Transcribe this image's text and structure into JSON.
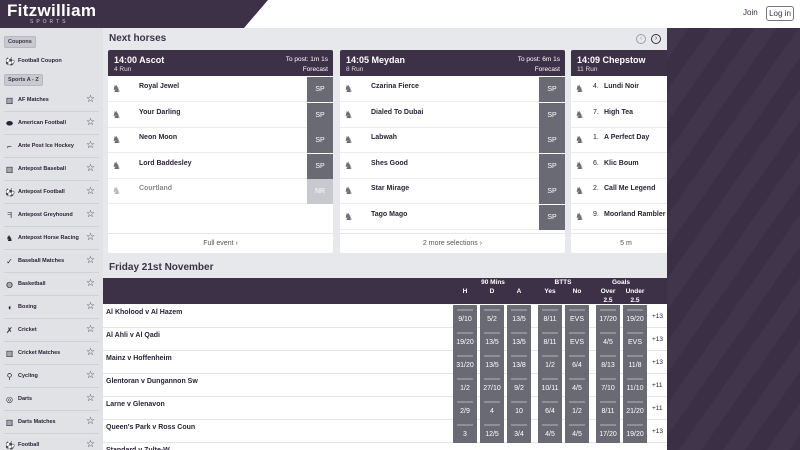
{
  "header": {
    "brand": "Fitzwilliam",
    "brand_sub": "SPORTS",
    "join": "Join",
    "login": "Log in"
  },
  "sidebar": {
    "pill_coupons": "Coupons",
    "coupon_item": {
      "label": "Football Coupon",
      "icon": "soccer-ball-icon"
    },
    "pill_sports": "Sports A - Z",
    "items": [
      {
        "label": "AF Matches",
        "icon": "chart-icon",
        "glyph": "▥"
      },
      {
        "label": "American Football",
        "icon": "american-football-icon",
        "glyph": "⬬"
      },
      {
        "label": "Ante Post Ice Hockey",
        "icon": "hockey-stick-icon",
        "glyph": "⌐"
      },
      {
        "label": "Antepost Baseball",
        "icon": "chart-icon",
        "glyph": "▥"
      },
      {
        "label": "Antepost Football",
        "icon": "soccer-ball-icon",
        "glyph": "⚽"
      },
      {
        "label": "Antepost Greyhound",
        "icon": "greyhound-icon",
        "glyph": "ᖷ"
      },
      {
        "label": "Antepost Horse Racing",
        "icon": "horse-icon",
        "glyph": "♞"
      },
      {
        "label": "Baseball Matches",
        "icon": "baseball-bat-icon",
        "glyph": "✓"
      },
      {
        "label": "Basketball",
        "icon": "basketball-icon",
        "glyph": "◍"
      },
      {
        "label": "Boxing",
        "icon": "boxing-glove-icon",
        "glyph": "◖"
      },
      {
        "label": "Cricket",
        "icon": "cricket-icon",
        "glyph": "✗"
      },
      {
        "label": "Cricket Matches",
        "icon": "chart-icon",
        "glyph": "▥"
      },
      {
        "label": "Cycling",
        "icon": "bicycle-icon",
        "glyph": "⚲"
      },
      {
        "label": "Darts",
        "icon": "darts-icon",
        "glyph": "◎"
      },
      {
        "label": "Darts Matches",
        "icon": "chart-icon",
        "glyph": "▥"
      },
      {
        "label": "Football",
        "icon": "soccer-ball-icon",
        "glyph": "⚽"
      }
    ]
  },
  "next_horses": {
    "title": "Next horses",
    "cards": [
      {
        "time_venue": "14:00 Ascot",
        "runs": "4 Run",
        "to_post": "To post: 1m 1s",
        "forecast": "Forecast",
        "footer": "Full event ›",
        "runners": [
          {
            "num": "",
            "name": "Royal Jewel",
            "price": "SP",
            "nr": false
          },
          {
            "num": "",
            "name": "Your Darling",
            "price": "SP",
            "nr": false
          },
          {
            "num": "",
            "name": "Neon Moon",
            "price": "SP",
            "nr": false
          },
          {
            "num": "",
            "name": "Lord Baddesley",
            "price": "SP",
            "nr": false
          },
          {
            "num": "",
            "name": "Courtland",
            "price": "NR",
            "nr": true
          }
        ]
      },
      {
        "time_venue": "14:05 Meydan",
        "runs": "8 Run",
        "to_post": "To post: 6m 1s",
        "forecast": "Forecast",
        "footer": "2 more selections ›",
        "runners": [
          {
            "num": "",
            "name": "Czarina Fierce",
            "price": "SP",
            "nr": false
          },
          {
            "num": "",
            "name": "Dialed To Dubai",
            "price": "SP",
            "nr": false
          },
          {
            "num": "",
            "name": "Labwah",
            "price": "SP",
            "nr": false
          },
          {
            "num": "",
            "name": "Shes Good",
            "price": "SP",
            "nr": false
          },
          {
            "num": "",
            "name": "Star Mirage",
            "price": "SP",
            "nr": false
          },
          {
            "num": "",
            "name": "Tago Mago",
            "price": "SP",
            "nr": false
          }
        ]
      },
      {
        "time_venue": "14:09 Chepstow",
        "runs": "11 Run",
        "to_post": "",
        "forecast": "",
        "footer": "5 m",
        "runners": [
          {
            "num": "4.",
            "name": "Lundi Noir",
            "price": "",
            "nr": false
          },
          {
            "num": "7.",
            "name": "High Tea",
            "price": "",
            "nr": false
          },
          {
            "num": "1.",
            "name": "A Perfect Day",
            "price": "",
            "nr": false
          },
          {
            "num": "6.",
            "name": "Klic Boum",
            "price": "",
            "nr": false
          },
          {
            "num": "2.",
            "name": "Call Me Legend",
            "price": "",
            "nr": false
          },
          {
            "num": "9.",
            "name": "Moorland Rambler",
            "price": "",
            "nr": false
          }
        ]
      }
    ]
  },
  "fixtures": {
    "date": "Friday 21st November",
    "groups": {
      "g1": "90 Mins",
      "g2": "BTTS",
      "g3": "Goals"
    },
    "cols": {
      "h": "H",
      "d": "D",
      "a": "A",
      "yes": "Yes",
      "no": "No",
      "over": "Over",
      "under": "Under",
      "line": "2.5"
    },
    "rows": [
      {
        "teams": "Al Kholood v Al Hazem",
        "odds": [
          "9/10",
          "5/2",
          "13/5",
          "8/11",
          "EVS",
          "17/20",
          "19/20"
        ],
        "more": "+13"
      },
      {
        "teams": "Al Ahli v Al Qadi",
        "odds": [
          "19/20",
          "13/5",
          "13/5",
          "8/11",
          "EVS",
          "4/5",
          "EVS"
        ],
        "more": "+13"
      },
      {
        "teams": "Mainz v Hoffenheim",
        "odds": [
          "31/20",
          "13/5",
          "13/8",
          "1/2",
          "6/4",
          "8/13",
          "11/8"
        ],
        "more": "+13"
      },
      {
        "teams": "Glentoran v Dungannon Sw",
        "odds": [
          "1/2",
          "27/10",
          "9/2",
          "10/11",
          "4/5",
          "7/10",
          "11/10"
        ],
        "more": "+11"
      },
      {
        "teams": "Larne v Glenavon",
        "odds": [
          "2/9",
          "4",
          "10",
          "6/4",
          "1/2",
          "8/11",
          "21/20"
        ],
        "more": "+11"
      },
      {
        "teams": "Queen's Park v Ross Coun",
        "odds": [
          "3",
          "12/5",
          "3/4",
          "4/5",
          "4/5",
          "17/20",
          "19/20"
        ],
        "more": "+13"
      },
      {
        "teams": "Standard v Zulte-W",
        "odds": [
          "",
          "",
          "",
          "",
          "",
          "",
          ""
        ],
        "more": ""
      }
    ]
  }
}
